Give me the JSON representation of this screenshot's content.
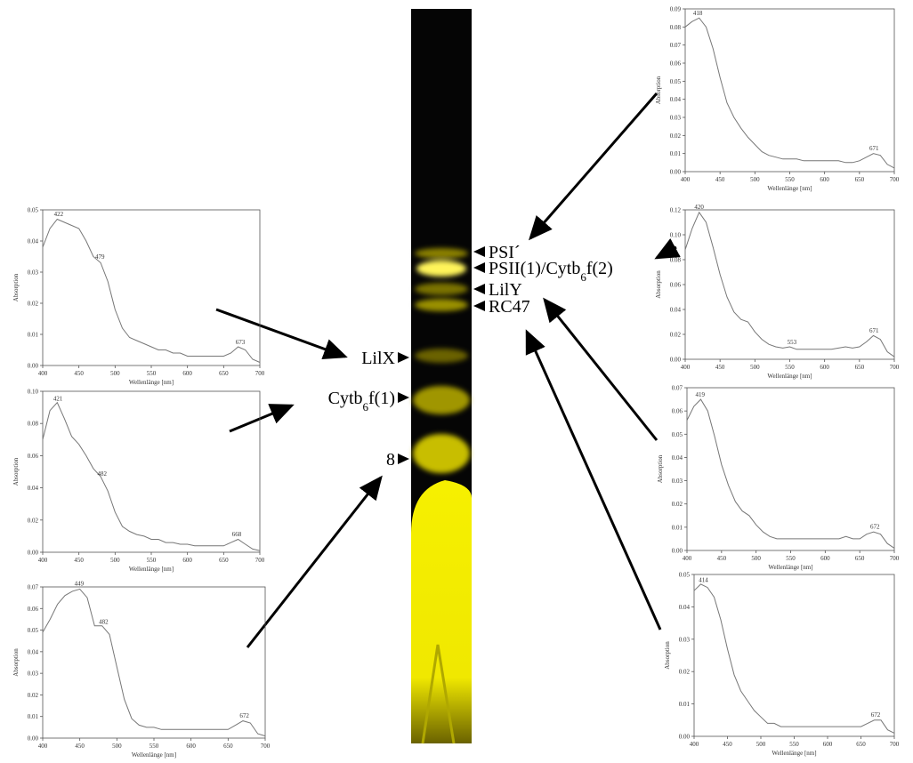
{
  "chart_data": [
    {
      "type": "line",
      "xlabel": "Wellenlänge [nm]",
      "ylabel": "Absorption",
      "color": "#777777",
      "x": [
        400,
        410,
        420,
        430,
        440,
        450,
        460,
        470,
        480,
        490,
        500,
        510,
        520,
        530,
        540,
        550,
        560,
        570,
        580,
        590,
        600,
        610,
        620,
        630,
        640,
        650,
        660,
        670,
        680,
        690,
        700
      ],
      "values": [
        0.08,
        0.083,
        0.085,
        0.08,
        0.068,
        0.052,
        0.038,
        0.03,
        0.024,
        0.019,
        0.015,
        0.011,
        0.009,
        0.008,
        0.007,
        0.007,
        0.007,
        0.006,
        0.006,
        0.006,
        0.006,
        0.006,
        0.006,
        0.005,
        0.005,
        0.006,
        0.008,
        0.01,
        0.009,
        0.004,
        0.002
      ],
      "peak_labels": [
        418,
        671
      ],
      "xlim": [
        400,
        700
      ],
      "xticks": [
        400,
        450,
        500,
        550,
        600,
        650,
        700
      ],
      "ylim": [
        0,
        0.09
      ],
      "yticks": [
        {
          "value": 0,
          "label": "0.00"
        },
        {
          "value": 0.01,
          "label": "0.01"
        },
        {
          "value": 0.02,
          "label": "0.02"
        },
        {
          "value": 0.03,
          "label": "0.03"
        },
        {
          "value": 0.04,
          "label": "0.04"
        },
        {
          "value": 0.05,
          "label": "0.05"
        },
        {
          "value": 0.06,
          "label": "0.06"
        },
        {
          "value": 0.07,
          "label": "0.07"
        },
        {
          "value": 0.08,
          "label": "0.08"
        },
        {
          "value": 0.09,
          "label": "0.09"
        }
      ]
    },
    {
      "type": "line",
      "xlabel": "Wellenlänge [nm]",
      "ylabel": "Absorption",
      "color": "#777777",
      "x": [
        400,
        410,
        420,
        430,
        440,
        450,
        460,
        470,
        480,
        490,
        500,
        510,
        520,
        530,
        540,
        550,
        560,
        570,
        580,
        590,
        600,
        610,
        620,
        630,
        640,
        650,
        660,
        670,
        680,
        690,
        700
      ],
      "values": [
        0.088,
        0.105,
        0.118,
        0.11,
        0.09,
        0.068,
        0.05,
        0.038,
        0.032,
        0.03,
        0.022,
        0.016,
        0.012,
        0.01,
        0.009,
        0.01,
        0.008,
        0.008,
        0.008,
        0.008,
        0.008,
        0.008,
        0.009,
        0.01,
        0.009,
        0.01,
        0.014,
        0.019,
        0.016,
        0.006,
        0.002
      ],
      "peak_labels": [
        420,
        553,
        671
      ],
      "xlim": [
        400,
        700
      ],
      "xticks": [
        400,
        450,
        500,
        550,
        600,
        650,
        700
      ],
      "ylim": [
        0,
        0.12
      ],
      "yticks": [
        {
          "value": 0,
          "label": "0.00"
        },
        {
          "value": 0.02,
          "label": "0.02"
        },
        {
          "value": 0.04,
          "label": "0.04"
        },
        {
          "value": 0.06,
          "label": "0.06"
        },
        {
          "value": 0.08,
          "label": "0.08"
        },
        {
          "value": 0.1,
          "label": "0.10"
        },
        {
          "value": 0.12,
          "label": "0.12"
        }
      ]
    },
    {
      "type": "line",
      "xlabel": "Wellenlänge [nm]",
      "ylabel": "Absorption",
      "color": "#777777",
      "x": [
        400,
        410,
        420,
        430,
        440,
        450,
        460,
        470,
        480,
        490,
        500,
        510,
        520,
        530,
        540,
        550,
        560,
        570,
        580,
        590,
        600,
        610,
        620,
        630,
        640,
        650,
        660,
        670,
        680,
        690,
        700
      ],
      "values": [
        0.056,
        0.062,
        0.065,
        0.06,
        0.049,
        0.037,
        0.028,
        0.021,
        0.017,
        0.015,
        0.011,
        0.008,
        0.006,
        0.005,
        0.005,
        0.005,
        0.005,
        0.005,
        0.005,
        0.005,
        0.005,
        0.005,
        0.005,
        0.006,
        0.005,
        0.005,
        0.007,
        0.008,
        0.007,
        0.003,
        0.001
      ],
      "peak_labels": [
        419,
        672
      ],
      "xlim": [
        400,
        700
      ],
      "xticks": [
        400,
        450,
        500,
        550,
        600,
        650,
        700
      ],
      "ylim": [
        0,
        0.07
      ],
      "yticks": [
        {
          "value": 0,
          "label": "0.00"
        },
        {
          "value": 0.01,
          "label": "0.01"
        },
        {
          "value": 0.02,
          "label": "0.02"
        },
        {
          "value": 0.03,
          "label": "0.03"
        },
        {
          "value": 0.04,
          "label": "0.04"
        },
        {
          "value": 0.05,
          "label": "0.05"
        },
        {
          "value": 0.06,
          "label": "0.06"
        },
        {
          "value": 0.07,
          "label": "0.07"
        }
      ]
    },
    {
      "type": "line",
      "xlabel": "Wellenlänge [nm]",
      "ylabel": "Absorption",
      "color": "#777777",
      "x": [
        400,
        410,
        420,
        430,
        440,
        450,
        460,
        470,
        480,
        490,
        500,
        510,
        520,
        530,
        540,
        550,
        560,
        570,
        580,
        590,
        600,
        610,
        620,
        630,
        640,
        650,
        660,
        670,
        680,
        690,
        700
      ],
      "values": [
        0.045,
        0.047,
        0.046,
        0.043,
        0.036,
        0.027,
        0.019,
        0.014,
        0.011,
        0.008,
        0.006,
        0.004,
        0.004,
        0.003,
        0.003,
        0.003,
        0.003,
        0.003,
        0.003,
        0.003,
        0.003,
        0.003,
        0.003,
        0.003,
        0.003,
        0.003,
        0.004,
        0.005,
        0.005,
        0.002,
        0.001
      ],
      "peak_labels": [
        414,
        672
      ],
      "xlim": [
        400,
        700
      ],
      "xticks": [
        400,
        450,
        500,
        550,
        600,
        650,
        700
      ],
      "ylim": [
        0,
        0.05
      ],
      "yticks": [
        {
          "value": 0,
          "label": "0.00"
        },
        {
          "value": 0.01,
          "label": "0.01"
        },
        {
          "value": 0.02,
          "label": "0.02"
        },
        {
          "value": 0.03,
          "label": "0.03"
        },
        {
          "value": 0.04,
          "label": "0.04"
        },
        {
          "value": 0.05,
          "label": "0.05"
        }
      ]
    },
    {
      "type": "line",
      "xlabel": "Wellenlänge [nm]",
      "ylabel": "Absorption",
      "color": "#777777",
      "x": [
        400,
        410,
        420,
        430,
        440,
        450,
        460,
        470,
        480,
        490,
        500,
        510,
        520,
        530,
        540,
        550,
        560,
        570,
        580,
        590,
        600,
        610,
        620,
        630,
        640,
        650,
        660,
        670,
        680,
        690,
        700
      ],
      "values": [
        0.038,
        0.044,
        0.047,
        0.046,
        0.045,
        0.044,
        0.04,
        0.035,
        0.033,
        0.027,
        0.018,
        0.012,
        0.009,
        0.008,
        0.007,
        0.006,
        0.005,
        0.005,
        0.004,
        0.004,
        0.003,
        0.003,
        0.003,
        0.003,
        0.003,
        0.003,
        0.004,
        0.006,
        0.005,
        0.002,
        0.001
      ],
      "peak_labels": [
        422,
        479,
        673
      ],
      "xlim": [
        400,
        700
      ],
      "xticks": [
        400,
        450,
        500,
        550,
        600,
        650,
        700
      ],
      "ylim": [
        0,
        0.05
      ],
      "yticks": [
        {
          "value": 0,
          "label": "0.00"
        },
        {
          "value": 0.01,
          "label": "0.01"
        },
        {
          "value": 0.02,
          "label": "0.02"
        },
        {
          "value": 0.03,
          "label": "0.03"
        },
        {
          "value": 0.04,
          "label": "0.04"
        },
        {
          "value": 0.05,
          "label": "0.05"
        }
      ]
    },
    {
      "type": "line",
      "xlabel": "Wellenlänge [nm]",
      "ylabel": "Absorption",
      "color": "#777777",
      "x": [
        400,
        410,
        420,
        430,
        440,
        450,
        460,
        470,
        480,
        490,
        500,
        510,
        520,
        530,
        540,
        550,
        560,
        570,
        580,
        590,
        600,
        610,
        620,
        630,
        640,
        650,
        660,
        670,
        680,
        690,
        700
      ],
      "values": [
        0.07,
        0.088,
        0.093,
        0.083,
        0.072,
        0.067,
        0.06,
        0.052,
        0.047,
        0.038,
        0.025,
        0.016,
        0.013,
        0.011,
        0.01,
        0.008,
        0.008,
        0.006,
        0.006,
        0.005,
        0.005,
        0.004,
        0.004,
        0.004,
        0.004,
        0.004,
        0.006,
        0.008,
        0.005,
        0.002,
        0.001
      ],
      "peak_labels": [
        421,
        482,
        668
      ],
      "xlim": [
        400,
        700
      ],
      "xticks": [
        400,
        450,
        500,
        550,
        600,
        650,
        700
      ],
      "ylim": [
        0,
        0.1
      ],
      "yticks": [
        {
          "value": 0,
          "label": "0.00"
        },
        {
          "value": 0.02,
          "label": "0.02"
        },
        {
          "value": 0.04,
          "label": "0.04"
        },
        {
          "value": 0.06,
          "label": "0.06"
        },
        {
          "value": 0.08,
          "label": "0.08"
        },
        {
          "value": 0.1,
          "label": "0.10"
        }
      ]
    },
    {
      "type": "line",
      "xlabel": "Wellenlänge [nm]",
      "ylabel": "Absorption",
      "color": "#777777",
      "x": [
        400,
        410,
        420,
        430,
        440,
        450,
        460,
        470,
        480,
        490,
        500,
        510,
        520,
        530,
        540,
        550,
        560,
        570,
        580,
        590,
        600,
        610,
        620,
        630,
        640,
        650,
        660,
        670,
        680,
        690,
        700
      ],
      "values": [
        0.049,
        0.055,
        0.062,
        0.066,
        0.068,
        0.069,
        0.065,
        0.052,
        0.052,
        0.048,
        0.033,
        0.018,
        0.009,
        0.006,
        0.005,
        0.005,
        0.004,
        0.004,
        0.004,
        0.004,
        0.004,
        0.004,
        0.004,
        0.004,
        0.004,
        0.004,
        0.006,
        0.008,
        0.007,
        0.002,
        0.001
      ],
      "peak_labels": [
        449,
        482,
        672
      ],
      "xlim": [
        400,
        700
      ],
      "xticks": [
        400,
        450,
        500,
        550,
        600,
        650,
        700
      ],
      "ylim": [
        0,
        0.07
      ],
      "yticks": [
        {
          "value": 0,
          "label": "0.00"
        },
        {
          "value": 0.01,
          "label": "0.01"
        },
        {
          "value": 0.02,
          "label": "0.02"
        },
        {
          "value": 0.03,
          "label": "0.03"
        },
        {
          "value": 0.04,
          "label": "0.04"
        },
        {
          "value": 0.05,
          "label": "0.05"
        },
        {
          "value": 0.06,
          "label": "0.06"
        },
        {
          "value": 0.07,
          "label": "0.07"
        }
      ]
    }
  ],
  "gel": {
    "right_bands": [
      {
        "label": [
          "PSI´"
        ]
      },
      {
        "label": [
          "PSII(1)/Cytb",
          "6",
          "f(2)"
        ]
      },
      {
        "label": [
          "LilY"
        ]
      },
      {
        "label": [
          "RC47"
        ]
      }
    ],
    "left_bands": [
      {
        "label": [
          "LilX"
        ]
      },
      {
        "label": [
          "Cytb",
          "6",
          "f(1)"
        ]
      },
      {
        "label": [
          "8"
        ]
      }
    ]
  }
}
